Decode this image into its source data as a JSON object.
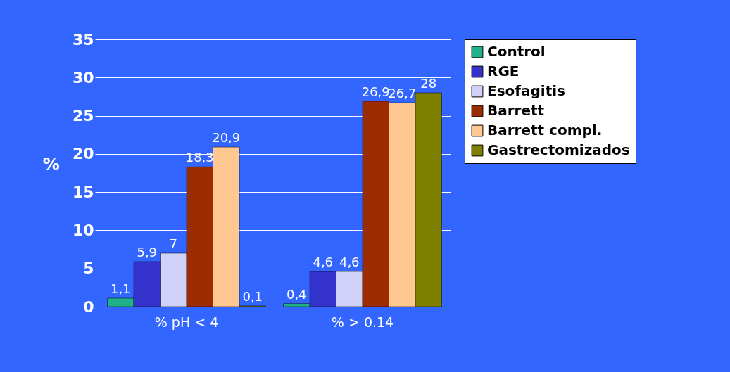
{
  "chart_data": {
    "type": "bar",
    "ylabel": "%",
    "categories": [
      "% pH < 4",
      "% > 0.14"
    ],
    "series": [
      {
        "name": "Control",
        "color": "#20b08c",
        "values": [
          1.1,
          0.4
        ],
        "value_labels": [
          "1,1",
          "0,4"
        ]
      },
      {
        "name": "RGE",
        "color": "#3333cc",
        "values": [
          5.9,
          4.6
        ],
        "value_labels": [
          "5,9",
          "4,6"
        ]
      },
      {
        "name": "Esofagitis",
        "color": "#d0d0f8",
        "values": [
          7,
          4.6
        ],
        "value_labels": [
          "7",
          "4,6"
        ]
      },
      {
        "name": "Barrett",
        "color": "#9c2c00",
        "values": [
          18.3,
          26.9
        ],
        "value_labels": [
          "18,3",
          "26,9"
        ]
      },
      {
        "name": "Barrett compl.",
        "color": "#ffc890",
        "values": [
          20.9,
          26.7
        ],
        "value_labels": [
          "20,9",
          "26,7"
        ]
      },
      {
        "name": "Gastrectomizados",
        "color": "#808000",
        "values": [
          0.1,
          28
        ],
        "value_labels": [
          "0,1",
          "28"
        ]
      }
    ],
    "ylim": [
      0,
      35
    ],
    "yticks": [
      0,
      5,
      10,
      15,
      20,
      25,
      30,
      35
    ],
    "grid": "y",
    "legend": "right"
  }
}
